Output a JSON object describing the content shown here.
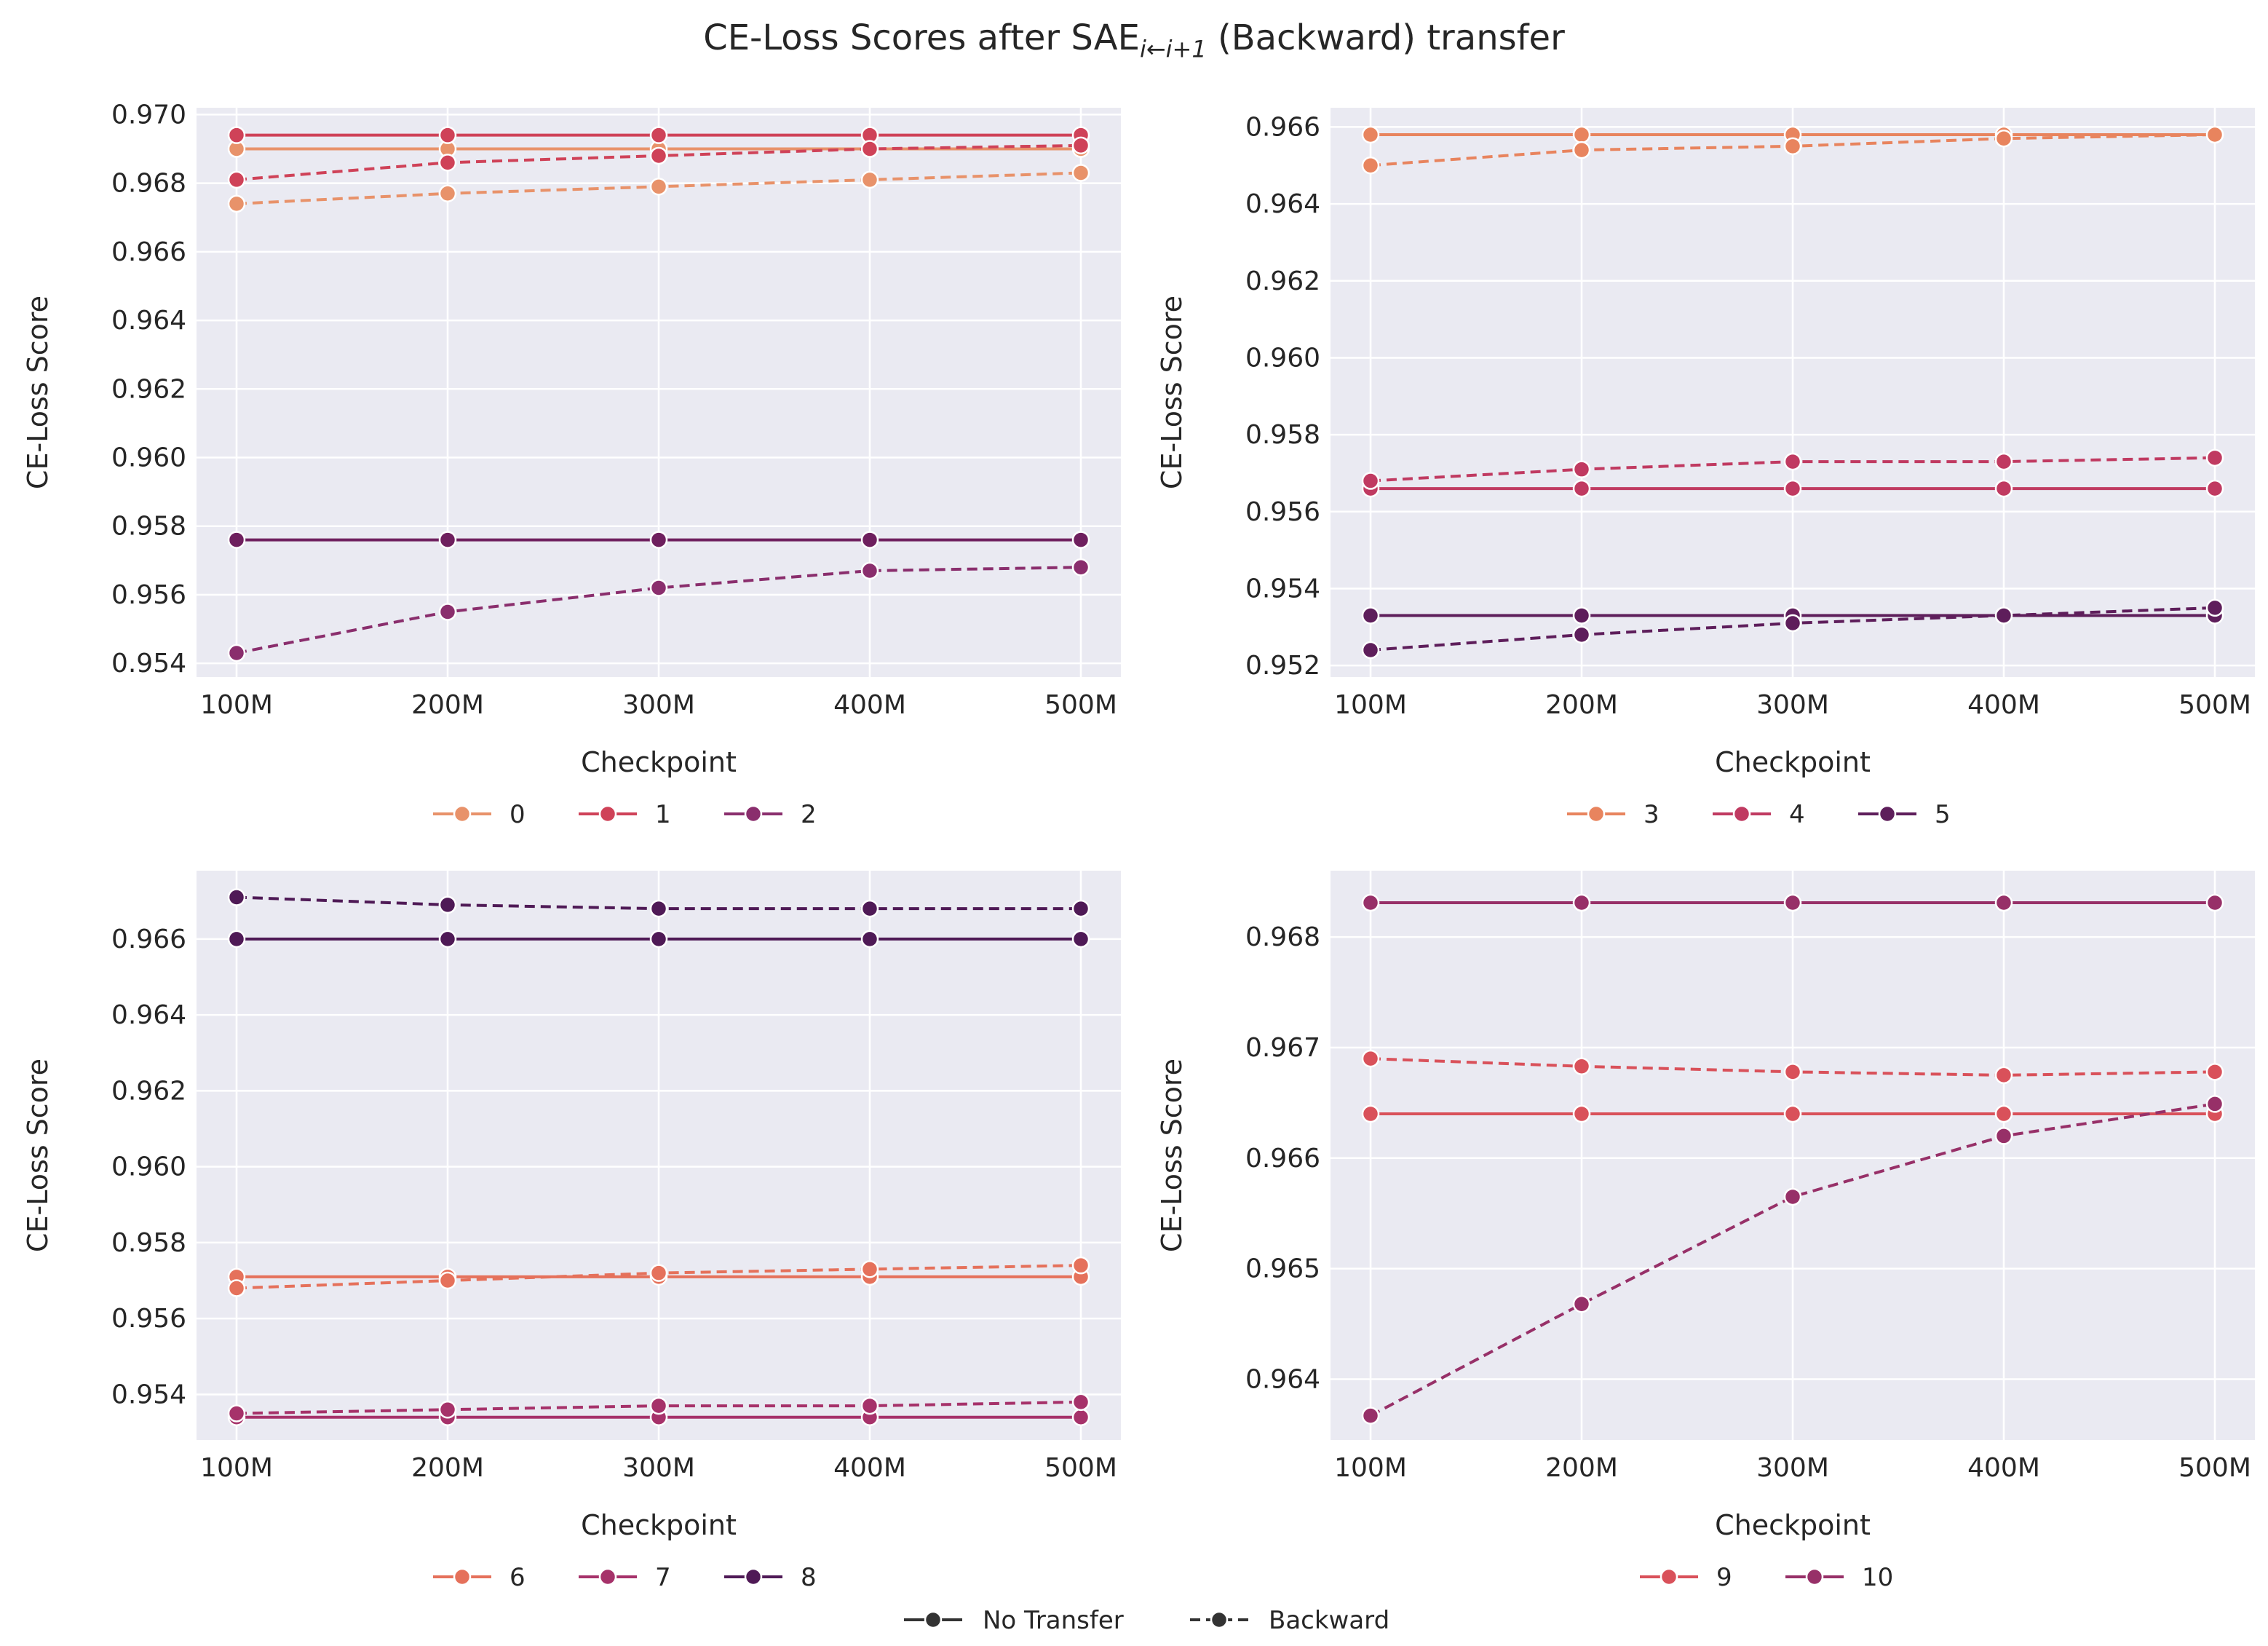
{
  "figure": {
    "title_prefix": "CE-Loss Scores after SAE",
    "title_subscript": "i←i+1",
    "title_suffix": " (Backward) transfer",
    "style_legend": [
      {
        "label": "No Transfer",
        "dash": "solid"
      },
      {
        "label": "Backward",
        "dash": "dashed"
      }
    ]
  },
  "chart_data": [
    {
      "type": "line",
      "xlabel": "Checkpoint",
      "ylabel": "CE-Loss Score",
      "categories": [
        "100M",
        "200M",
        "300M",
        "400M",
        "500M"
      ],
      "ylim": [
        0.9536,
        0.9702
      ],
      "yticks": [
        0.954,
        0.956,
        0.958,
        0.96,
        0.962,
        0.964,
        0.966,
        0.968,
        0.97
      ],
      "ytick_labels": [
        "0.954",
        "0.956",
        "0.958",
        "0.960",
        "0.962",
        "0.964",
        "0.966",
        "0.968",
        "0.970"
      ],
      "grid": true,
      "legend_position": "bottom-center",
      "legend": [
        {
          "label": "0",
          "color": "#E8926A"
        },
        {
          "label": "1",
          "color": "#CF4258"
        },
        {
          "label": "2",
          "color": "#8A2E6D"
        }
      ],
      "series": [
        {
          "name": "0",
          "style": "No Transfer",
          "color": "#E8926A",
          "values": [
            0.969,
            0.969,
            0.969,
            0.969,
            0.969
          ]
        },
        {
          "name": "0",
          "style": "Backward",
          "color": "#E8926A",
          "values": [
            0.9674,
            0.9677,
            0.9679,
            0.9681,
            0.9683
          ]
        },
        {
          "name": "1",
          "style": "No Transfer",
          "color": "#CF4258",
          "values": [
            0.9694,
            0.9694,
            0.9694,
            0.9694,
            0.9694
          ]
        },
        {
          "name": "1",
          "style": "Backward",
          "color": "#CF4258",
          "values": [
            0.9681,
            0.9686,
            0.9688,
            0.969,
            0.9691
          ]
        },
        {
          "name": "2",
          "style": "No Transfer",
          "color": "#6E1F5E",
          "values": [
            0.9576,
            0.9576,
            0.9576,
            0.9576,
            0.9576
          ]
        },
        {
          "name": "2",
          "style": "Backward",
          "color": "#8A2E6D",
          "values": [
            0.9543,
            0.9555,
            0.9562,
            0.9567,
            0.9568
          ]
        }
      ]
    },
    {
      "type": "line",
      "xlabel": "Checkpoint",
      "ylabel": "CE-Loss Score",
      "categories": [
        "100M",
        "200M",
        "300M",
        "400M",
        "500M"
      ],
      "ylim": [
        0.9517,
        0.9665
      ],
      "yticks": [
        0.952,
        0.954,
        0.956,
        0.958,
        0.96,
        0.962,
        0.964,
        0.966
      ],
      "ytick_labels": [
        "0.952",
        "0.954",
        "0.956",
        "0.958",
        "0.960",
        "0.962",
        "0.964",
        "0.966"
      ],
      "grid": true,
      "legend_position": "bottom-center",
      "legend": [
        {
          "label": "3",
          "color": "#E8845E"
        },
        {
          "label": "4",
          "color": "#C03A61"
        },
        {
          "label": "5",
          "color": "#5E1E5B"
        }
      ],
      "series": [
        {
          "name": "3",
          "style": "No Transfer",
          "color": "#E8845E",
          "values": [
            0.9658,
            0.9658,
            0.9658,
            0.9658,
            0.9658
          ]
        },
        {
          "name": "3",
          "style": "Backward",
          "color": "#E8845E",
          "values": [
            0.965,
            0.9654,
            0.9655,
            0.9657,
            0.9658
          ]
        },
        {
          "name": "4",
          "style": "No Transfer",
          "color": "#C03A61",
          "values": [
            0.9566,
            0.9566,
            0.9566,
            0.9566,
            0.9566
          ]
        },
        {
          "name": "4",
          "style": "Backward",
          "color": "#C03A61",
          "values": [
            0.9568,
            0.9571,
            0.9573,
            0.9573,
            0.9574
          ]
        },
        {
          "name": "5",
          "style": "No Transfer",
          "color": "#5E1E5B",
          "values": [
            0.9533,
            0.9533,
            0.9533,
            0.9533,
            0.9533
          ]
        },
        {
          "name": "5",
          "style": "Backward",
          "color": "#5E1E5B",
          "values": [
            0.9524,
            0.9528,
            0.9531,
            0.9533,
            0.9535
          ]
        }
      ]
    },
    {
      "type": "line",
      "xlabel": "Checkpoint",
      "ylabel": "CE-Loss Score",
      "categories": [
        "100M",
        "200M",
        "300M",
        "400M",
        "500M"
      ],
      "ylim": [
        0.9528,
        0.9678
      ],
      "yticks": [
        0.954,
        0.956,
        0.958,
        0.96,
        0.962,
        0.964,
        0.966
      ],
      "ytick_labels": [
        "0.954",
        "0.956",
        "0.958",
        "0.960",
        "0.962",
        "0.964",
        "0.966"
      ],
      "grid": true,
      "legend_position": "bottom-center",
      "legend": [
        {
          "label": "6",
          "color": "#E5715B"
        },
        {
          "label": "7",
          "color": "#A6326A"
        },
        {
          "label": "8",
          "color": "#4F1A56"
        }
      ],
      "series": [
        {
          "name": "6",
          "style": "No Transfer",
          "color": "#E5715B",
          "values": [
            0.9571,
            0.9571,
            0.9571,
            0.9571,
            0.9571
          ]
        },
        {
          "name": "6",
          "style": "Backward",
          "color": "#E5715B",
          "values": [
            0.9568,
            0.957,
            0.9572,
            0.9573,
            0.9574
          ]
        },
        {
          "name": "7",
          "style": "No Transfer",
          "color": "#A6326A",
          "values": [
            0.9534,
            0.9534,
            0.9534,
            0.9534,
            0.9534
          ]
        },
        {
          "name": "7",
          "style": "Backward",
          "color": "#A6326A",
          "values": [
            0.9535,
            0.9536,
            0.9537,
            0.9537,
            0.9538
          ]
        },
        {
          "name": "8",
          "style": "No Transfer",
          "color": "#4F1A56",
          "values": [
            0.966,
            0.966,
            0.966,
            0.966,
            0.966
          ]
        },
        {
          "name": "8",
          "style": "Backward",
          "color": "#4F1A56",
          "values": [
            0.9671,
            0.9669,
            0.9668,
            0.9668,
            0.9668
          ]
        }
      ]
    },
    {
      "type": "line",
      "xlabel": "Checkpoint",
      "ylabel": "CE-Loss Score",
      "categories": [
        "100M",
        "200M",
        "300M",
        "400M",
        "500M"
      ],
      "ylim": [
        0.96345,
        0.9686
      ],
      "yticks": [
        0.964,
        0.965,
        0.966,
        0.967,
        0.968
      ],
      "ytick_labels": [
        "0.964",
        "0.965",
        "0.966",
        "0.967",
        "0.968"
      ],
      "grid": true,
      "legend_position": "bottom-center",
      "legend": [
        {
          "label": "9",
          "color": "#D9515A"
        },
        {
          "label": "10",
          "color": "#973068"
        }
      ],
      "series": [
        {
          "name": "9",
          "style": "No Transfer",
          "color": "#D9515A",
          "values": [
            0.9664,
            0.9664,
            0.9664,
            0.9664,
            0.9664
          ]
        },
        {
          "name": "9",
          "style": "Backward",
          "color": "#D9515A",
          "values": [
            0.9669,
            0.96683,
            0.96678,
            0.96675,
            0.96678
          ]
        },
        {
          "name": "10",
          "style": "No Transfer",
          "color": "#973068",
          "values": [
            0.96831,
            0.96831,
            0.96831,
            0.96831,
            0.96831
          ]
        },
        {
          "name": "10",
          "style": "Backward",
          "color": "#973068",
          "values": [
            0.96367,
            0.96468,
            0.96565,
            0.9662,
            0.96649
          ]
        }
      ]
    }
  ]
}
